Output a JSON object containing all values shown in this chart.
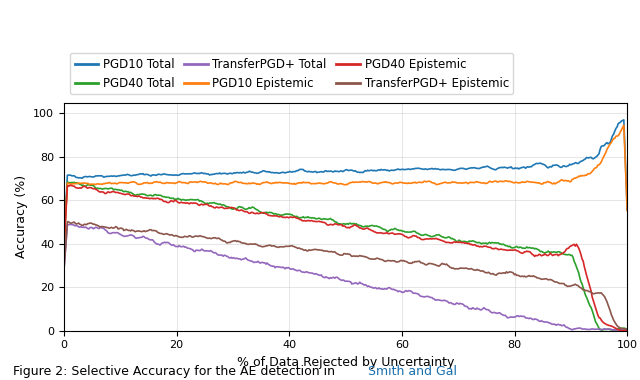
{
  "title": "",
  "xlabel": "% of Data Rejected by Uncertainty",
  "ylabel": "Accuracy (%)",
  "xlim": [
    0,
    100
  ],
  "ylim": [
    0,
    105
  ],
  "xticks": [
    0,
    20,
    40,
    60,
    80,
    100
  ],
  "yticks": [
    0,
    20,
    40,
    60,
    80,
    100
  ],
  "legend_entries_row1": [
    {
      "label": "PGD10 Total",
      "color": "#1f77b4"
    },
    {
      "label": "PGD40 Total",
      "color": "#2ca02c"
    },
    {
      "label": "TransferPGD+ Total",
      "color": "#9467bd"
    }
  ],
  "legend_entries_row2": [
    {
      "label": "PGD10 Epistemic",
      "color": "#ff7f0e"
    },
    {
      "label": "PGD40 Epistemic",
      "color": "#d62728"
    },
    {
      "label": "TransferPGD+ Epistemic",
      "color": "#8c564b"
    }
  ],
  "caption_text": "Figure 2: Selective Accuracy for the AE detection in ",
  "caption_link": "Smith and Gal",
  "caption_link_color": "#1a6faf",
  "background_color": "#ffffff",
  "grid": true,
  "figsize": [
    6.4,
    3.8
  ],
  "dpi": 100
}
